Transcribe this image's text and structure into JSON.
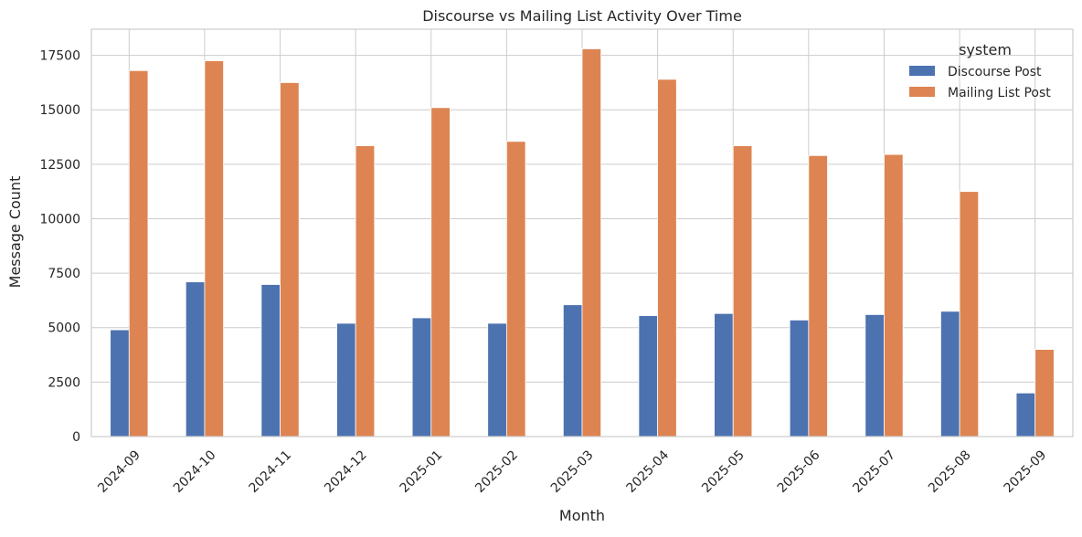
{
  "chart_data": {
    "type": "bar",
    "title": "Discourse vs Mailing List Activity Over Time",
    "xlabel": "Month",
    "ylabel": "Message Count",
    "categories": [
      "2024-09",
      "2024-10",
      "2024-11",
      "2024-12",
      "2025-01",
      "2025-02",
      "2025-03",
      "2025-04",
      "2025-05",
      "2025-06",
      "2025-07",
      "2025-08",
      "2025-09"
    ],
    "series": [
      {
        "name": "Discourse Post",
        "color": "#4c72b0",
        "values": [
          4900,
          7100,
          6980,
          5200,
          5450,
          5200,
          6050,
          5550,
          5650,
          5350,
          5600,
          5750,
          2000
        ]
      },
      {
        "name": "Mailing List Post",
        "color": "#dd8452",
        "values": [
          16800,
          17250,
          16250,
          13350,
          15100,
          13550,
          17800,
          16400,
          13350,
          12900,
          12950,
          11250,
          4000
        ]
      }
    ],
    "ylim": [
      0,
      18700
    ],
    "yticks": [
      0,
      2500,
      5000,
      7500,
      10000,
      12500,
      15000,
      17500
    ],
    "ytick_labels": [
      "0",
      "2500",
      "5000",
      "7500",
      "10000",
      "12500",
      "15000",
      "17500"
    ],
    "grid": true,
    "legend": {
      "title": "system",
      "position": "top-right"
    }
  }
}
